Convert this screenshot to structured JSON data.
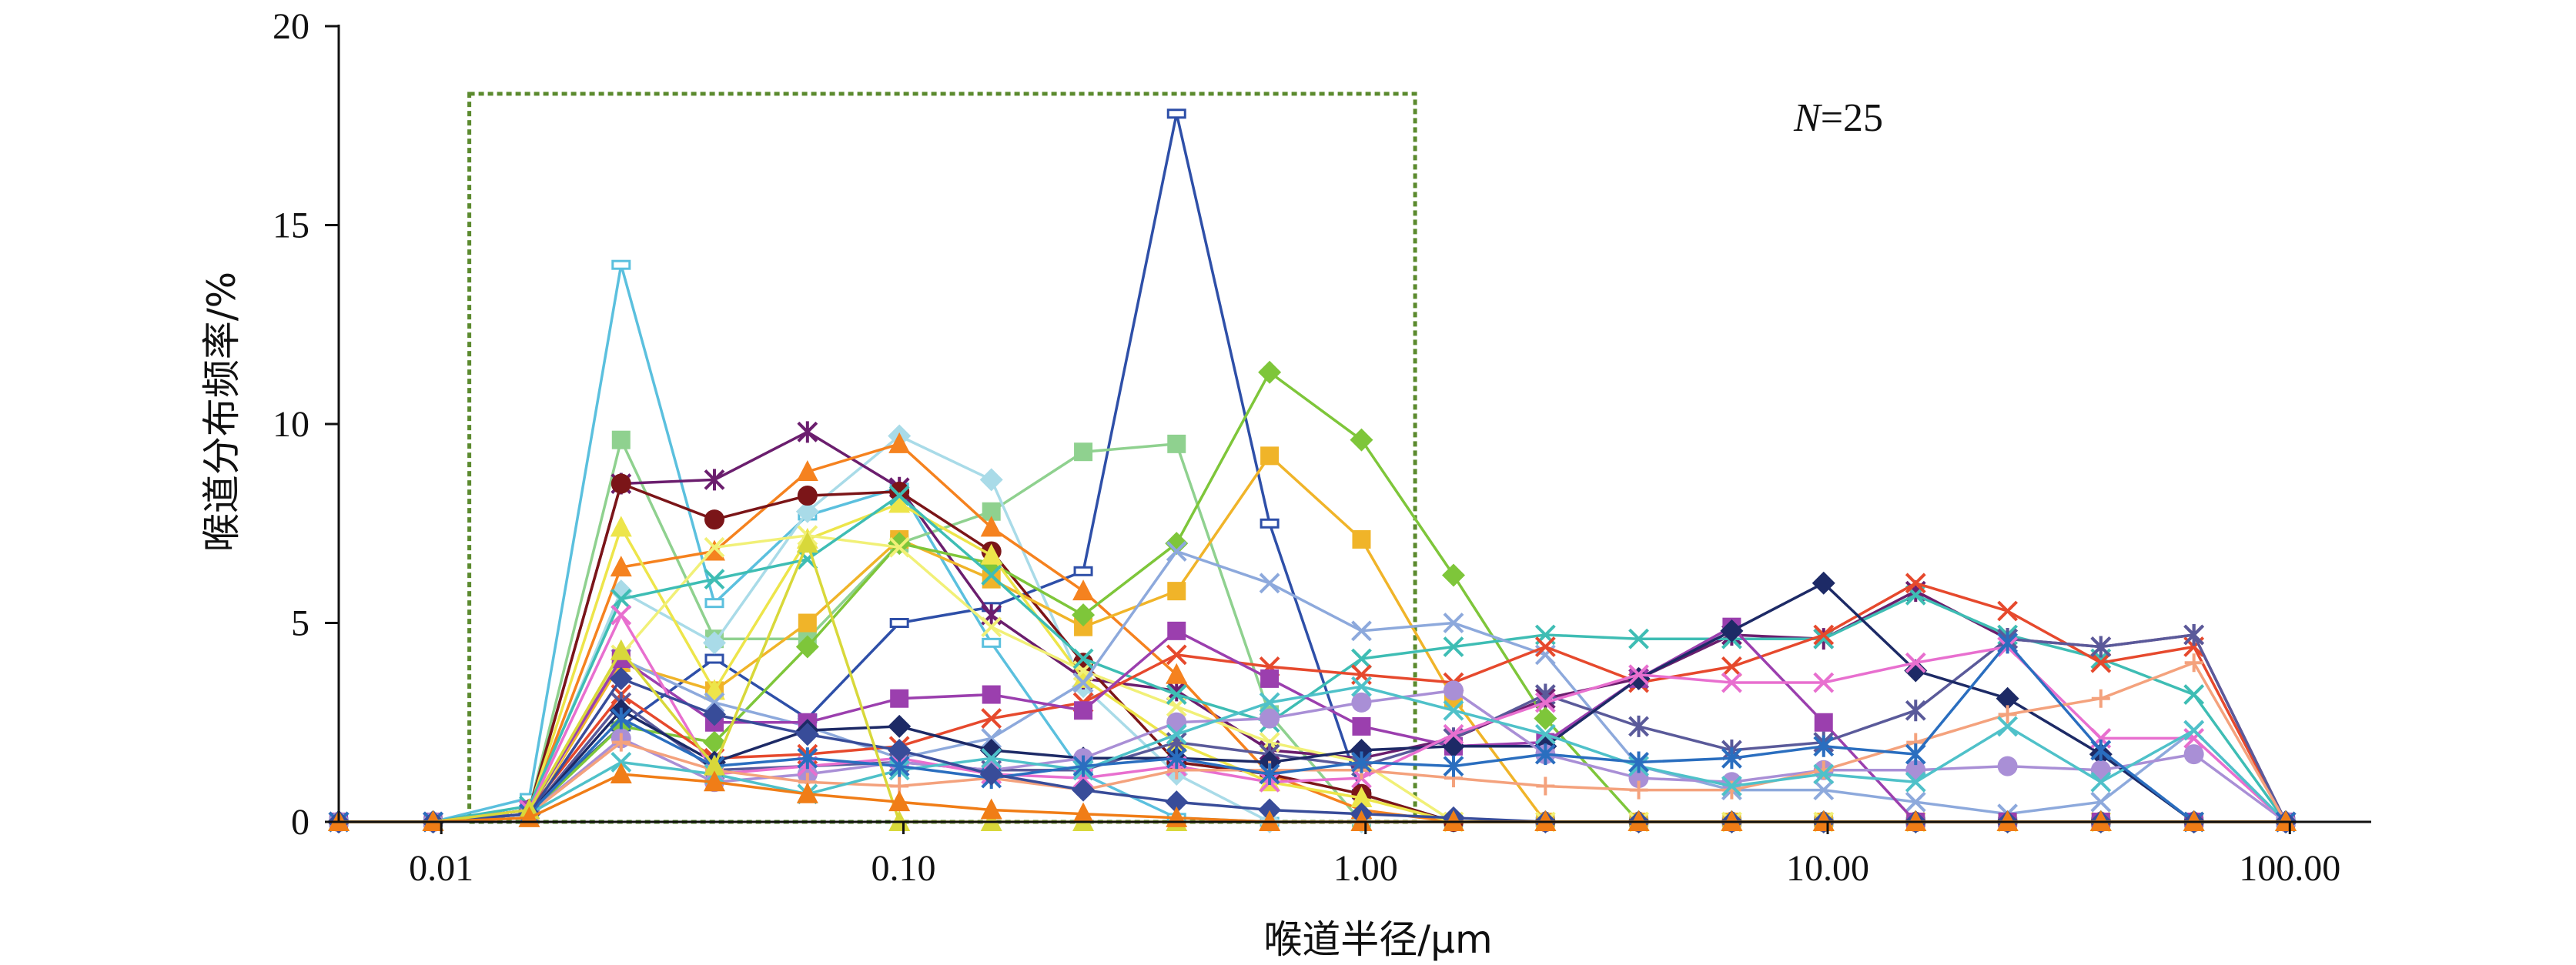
{
  "chart_data": {
    "type": "line",
    "x_scale": "log",
    "xlabel": "喉道半径/μm",
    "ylabel": "喉道分布频率/%",
    "xlim": [
      0.006,
      150
    ],
    "ylim": [
      0,
      20
    ],
    "x_ticks": [
      {
        "value": 0.01,
        "label": "0.01"
      },
      {
        "value": 0.1,
        "label": "0.10"
      },
      {
        "value": 1,
        "label": "1.00"
      },
      {
        "value": 10,
        "label": "10.00"
      },
      {
        "value": 100,
        "label": "100.00"
      }
    ],
    "y_ticks": [
      {
        "value": 0,
        "label": "0"
      },
      {
        "value": 5,
        "label": "5"
      },
      {
        "value": 10,
        "label": "10"
      },
      {
        "value": 15,
        "label": "15"
      },
      {
        "value": 20,
        "label": "20"
      }
    ],
    "annotation": {
      "italic": "N",
      "rest": "=25"
    },
    "highlight_box": {
      "x_range": [
        0.0115,
        1.28
      ],
      "y_range": [
        0,
        18.3
      ],
      "color": "#5b8a2e"
    },
    "x": [
      0.006,
      0.0096,
      0.0155,
      0.0245,
      0.039,
      0.062,
      0.098,
      0.155,
      0.245,
      0.39,
      0.62,
      0.98,
      1.55,
      2.45,
      3.9,
      6.2,
      9.8,
      15.5,
      24.5,
      39,
      62,
      98
    ],
    "series": [
      {
        "color": "#2e4fa8",
        "marker": "hbar",
        "values": [
          0,
          0,
          0.3,
          2.4,
          4.1,
          2.6,
          5.0,
          5.4,
          6.3,
          17.8,
          7.5,
          0.7,
          0,
          0,
          0,
          0,
          0,
          0,
          0,
          0,
          0,
          0
        ]
      },
      {
        "color": "#5bc0de",
        "marker": "hbar",
        "values": [
          0,
          0,
          0.6,
          14.0,
          5.5,
          7.7,
          8.4,
          4.5,
          1.2,
          0.1,
          0,
          0,
          0,
          0,
          0,
          0,
          0,
          0,
          0,
          0,
          0,
          0
        ]
      },
      {
        "color": "#8fd18f",
        "marker": "square",
        "values": [
          0,
          0,
          0.3,
          9.6,
          4.6,
          4.6,
          7.0,
          7.8,
          9.3,
          9.5,
          2.7,
          0,
          0,
          0,
          0,
          0,
          0,
          0,
          0,
          0,
          0,
          0
        ]
      },
      {
        "color": "#a9dbe8",
        "marker": "diamond",
        "values": [
          0,
          0,
          0.3,
          5.8,
          4.5,
          7.8,
          9.7,
          8.6,
          3.4,
          1.2,
          0,
          0,
          0,
          0,
          0,
          0,
          0,
          0,
          0,
          0,
          0,
          0
        ]
      },
      {
        "color": "#6b1e6e",
        "marker": "star",
        "values": [
          0,
          0,
          0.3,
          8.5,
          8.6,
          9.8,
          8.4,
          5.2,
          3.6,
          3.3,
          1.8,
          1.6,
          2.1,
          3.1,
          3.6,
          4.7,
          4.6,
          5.8,
          4.6,
          4.4,
          4.7,
          0
        ]
      },
      {
        "color": "#f5821f",
        "marker": "triangle",
        "values": [
          0,
          0,
          0.3,
          6.4,
          6.8,
          8.8,
          9.5,
          7.4,
          5.8,
          3.7,
          1.2,
          0.3,
          0,
          0,
          0,
          0,
          0,
          0,
          0,
          0,
          0,
          0
        ]
      },
      {
        "color": "#7b1518",
        "marker": "circle",
        "values": [
          0,
          0,
          0.3,
          8.5,
          7.6,
          8.2,
          8.3,
          6.8,
          4.0,
          1.5,
          1.2,
          0.7,
          0,
          0,
          0,
          0,
          0,
          0,
          0,
          0,
          0,
          0
        ]
      },
      {
        "color": "#f0b429",
        "marker": "square",
        "values": [
          0,
          0,
          0.2,
          4.0,
          3.3,
          5.0,
          7.1,
          6.1,
          4.9,
          5.8,
          9.2,
          7.1,
          3.1,
          0,
          0,
          0,
          0,
          0,
          0,
          0,
          0,
          0
        ]
      },
      {
        "color": "#7ec63a",
        "marker": "diamond",
        "values": [
          0,
          0,
          0.2,
          2.4,
          2.0,
          4.4,
          7.0,
          6.5,
          5.2,
          7.0,
          11.3,
          9.6,
          6.2,
          2.6,
          0,
          0,
          0,
          0,
          0,
          0,
          0,
          0
        ]
      },
      {
        "color": "#ede54a",
        "marker": "triangle",
        "values": [
          0,
          0,
          0.3,
          7.4,
          3.3,
          7.1,
          8.0,
          6.7,
          3.6,
          2.0,
          1.0,
          0.6,
          0,
          0,
          0,
          0,
          0,
          0,
          0,
          0,
          0,
          0
        ]
      },
      {
        "color": "#f1f077",
        "marker": "cross",
        "values": [
          0,
          0,
          0.2,
          4.2,
          6.9,
          7.2,
          6.9,
          4.9,
          3.8,
          2.9,
          2.0,
          1.5,
          0,
          0,
          0,
          0,
          0,
          0,
          0,
          0,
          0,
          0
        ]
      },
      {
        "color": "#3ebdb4",
        "marker": "cross",
        "values": [
          0,
          0,
          0.4,
          5.6,
          6.1,
          6.6,
          8.2,
          6.2,
          4.1,
          3.2,
          2.5,
          4.1,
          4.4,
          4.7,
          4.6,
          4.6,
          4.6,
          5.7,
          4.7,
          4.1,
          3.2,
          0
        ]
      },
      {
        "color": "#8da9dc",
        "marker": "cross",
        "values": [
          0,
          0,
          0.3,
          4.1,
          3.0,
          2.4,
          1.6,
          2.1,
          3.5,
          6.8,
          6.0,
          4.8,
          5.0,
          4.2,
          1.4,
          0.8,
          0.8,
          0.5,
          0.2,
          0.5,
          2.3,
          0
        ]
      },
      {
        "color": "#e6492d",
        "marker": "xmark",
        "values": [
          0,
          0,
          0.3,
          3.2,
          1.6,
          1.7,
          1.9,
          2.6,
          3.0,
          4.2,
          3.9,
          3.7,
          3.5,
          4.4,
          3.5,
          3.9,
          4.7,
          6.0,
          5.3,
          4.0,
          4.4,
          0
        ]
      },
      {
        "color": "#9b3fae",
        "marker": "square",
        "values": [
          0,
          0,
          0.3,
          4.1,
          2.5,
          2.5,
          3.1,
          3.2,
          2.8,
          4.8,
          3.6,
          2.4,
          1.9,
          2.0,
          3.6,
          4.9,
          2.5,
          0,
          0,
          0,
          0,
          0
        ]
      },
      {
        "color": "#5a5a9a",
        "marker": "star",
        "values": [
          0,
          0,
          0.2,
          3.0,
          1.3,
          1.4,
          1.5,
          1.3,
          1.3,
          2.0,
          1.7,
          1.4,
          2.1,
          3.2,
          2.4,
          1.8,
          2.0,
          2.8,
          4.6,
          4.4,
          4.7,
          0
        ]
      },
      {
        "color": "#1d2a66",
        "marker": "diamond",
        "values": [
          0,
          0,
          0.2,
          2.8,
          1.5,
          2.3,
          2.4,
          1.8,
          1.6,
          1.6,
          1.5,
          1.8,
          1.9,
          1.9,
          3.6,
          4.8,
          6.0,
          3.8,
          3.1,
          1.7,
          0,
          0
        ]
      },
      {
        "color": "#a98fd6",
        "marker": "circle",
        "values": [
          0,
          0,
          0.2,
          2.1,
          1.0,
          1.2,
          1.5,
          1.3,
          1.6,
          2.5,
          2.6,
          3.0,
          3.3,
          1.7,
          1.1,
          1.0,
          1.3,
          1.3,
          1.4,
          1.3,
          1.7,
          0
        ]
      },
      {
        "color": "#e86fcf",
        "marker": "xmark",
        "values": [
          0,
          0,
          0.3,
          5.2,
          1.2,
          1.4,
          1.6,
          1.2,
          1.1,
          1.4,
          1.0,
          1.1,
          2.2,
          3.0,
          3.7,
          3.5,
          3.5,
          4.0,
          4.4,
          2.1,
          2.1,
          0
        ]
      },
      {
        "color": "#f4a27d",
        "marker": "plus",
        "values": [
          0,
          0,
          0.2,
          2.0,
          1.3,
          1.0,
          0.9,
          1.1,
          0.8,
          1.3,
          1.3,
          1.3,
          1.1,
          0.9,
          0.8,
          0.8,
          1.3,
          2.0,
          2.7,
          3.1,
          4.0,
          0
        ]
      },
      {
        "color": "#4fc1c9",
        "marker": "cross",
        "values": [
          0,
          0,
          0.2,
          1.5,
          1.2,
          0.7,
          1.3,
          1.6,
          1.3,
          2.2,
          3.0,
          3.4,
          2.8,
          2.2,
          1.4,
          0.9,
          1.2,
          1.0,
          2.4,
          1.0,
          2.3,
          0
        ]
      },
      {
        "color": "#2a6ebf",
        "marker": "star",
        "values": [
          0,
          0,
          0.2,
          2.6,
          1.4,
          1.6,
          1.4,
          1.1,
          1.4,
          1.6,
          1.2,
          1.5,
          1.4,
          1.7,
          1.5,
          1.6,
          1.9,
          1.7,
          4.5,
          1.8,
          0,
          0
        ]
      },
      {
        "color": "#384c99",
        "marker": "diamond",
        "values": [
          0,
          0,
          0.2,
          3.6,
          2.7,
          2.2,
          1.8,
          1.2,
          0.8,
          0.5,
          0.3,
          0.2,
          0.1,
          0,
          0,
          0,
          0,
          0,
          0,
          0,
          0,
          0
        ]
      },
      {
        "color": "#d8d83a",
        "marker": "triangle",
        "values": [
          0,
          0,
          0.3,
          4.3,
          1.4,
          7.0,
          0,
          0,
          0,
          0,
          0,
          0,
          0,
          0,
          0,
          0,
          0,
          0,
          0,
          0,
          0,
          0
        ]
      },
      {
        "color": "#f07d17",
        "marker": "triangle",
        "values": [
          0,
          0,
          0.1,
          1.2,
          1.0,
          0.7,
          0.5,
          0.3,
          0.2,
          0.1,
          0,
          0,
          0,
          0,
          0,
          0,
          0,
          0,
          0,
          0,
          0,
          0
        ]
      }
    ]
  }
}
